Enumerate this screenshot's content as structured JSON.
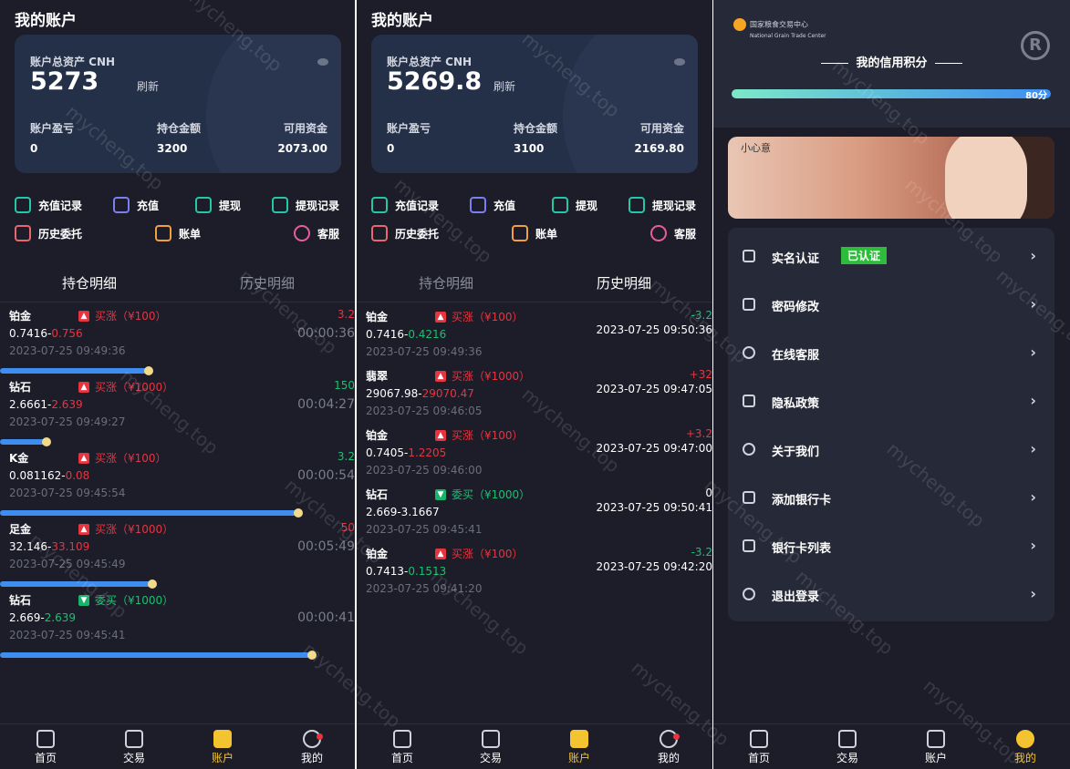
{
  "screen1": {
    "title": "我的账户",
    "total_label": "账户总资产 CNH",
    "total_value": "5273",
    "refresh": "刷新",
    "pnl_label": "账户盈亏",
    "pnl_value": "0",
    "hold_label": "持仓金额",
    "hold_value": "3200",
    "avail_label": "可用资金",
    "avail_value": "2073.00",
    "quick": [
      "充值记录",
      "充值",
      "提现",
      "提现记录",
      "历史委托",
      "账单",
      "客服"
    ],
    "tab_active": "持仓明细",
    "tab_other": "历史明细",
    "rows": [
      {
        "name": "铂金",
        "dir": "买涨（¥100）",
        "price_a": "0.7416-",
        "price_b": "0.756",
        "time": "2023-07-25 09:49:36",
        "right": "3.2",
        "countdown": "00:00:36",
        "progress": 0.42
      },
      {
        "name": "钻石",
        "dir": "买涨（¥1000）",
        "price_a": "2.6661-",
        "price_b": "2.639",
        "time": "2023-07-25 09:49:27",
        "right": "150",
        "countdown": "00:04:27",
        "progress": 0.13
      },
      {
        "name": "K金",
        "dir": "买涨（¥100）",
        "price_a": "0.081162-",
        "price_b": "0.08",
        "time": "2023-07-25 09:45:54",
        "right": "3.2",
        "countdown": "00:00:54",
        "progress": 0.84
      },
      {
        "name": "足金",
        "dir": "买涨（¥1000）",
        "price_a": "32.146-",
        "price_b": "33.109",
        "time": "2023-07-25 09:45:49",
        "right": "50",
        "countdown": "00:05:49",
        "progress": 0.43
      },
      {
        "name": "钻石",
        "dir": "委买（¥1000）",
        "price_a": "2.669-",
        "price_b": "2.639",
        "time": "2023-07-25 09:45:41",
        "right": "",
        "countdown": "00:00:41",
        "progress": 0.88
      }
    ]
  },
  "screen2": {
    "title": "我的账户",
    "total_label": "账户总资产 CNH",
    "total_value": "5269.8",
    "refresh": "刷新",
    "pnl_label": "账户盈亏",
    "pnl_value": "0",
    "hold_label": "持仓金额",
    "hold_value": "3100",
    "avail_label": "可用资金",
    "avail_value": "2169.80",
    "quick": [
      "充值记录",
      "充值",
      "提现",
      "提现记录",
      "历史委托",
      "账单",
      "客服"
    ],
    "tab_other": "持仓明细",
    "tab_active": "历史明细",
    "rows": [
      {
        "name": "铂金",
        "dir": "买涨（¥100）",
        "price_a": "0.7416-",
        "price_b": "0.4216",
        "time": "2023-07-25 09:49:36",
        "right": "-3.2",
        "rtime": "2023-07-25 09:50:36"
      },
      {
        "name": "翡翠",
        "dir": "买涨（¥1000）",
        "price_a": "29067.98-",
        "price_b": "29070.47",
        "time": "2023-07-25 09:46:05",
        "right": "+32",
        "rtime": "2023-07-25 09:47:05"
      },
      {
        "name": "铂金",
        "dir": "买涨（¥100）",
        "price_a": "0.7405-",
        "price_b": "1.2205",
        "time": "2023-07-25 09:46:00",
        "right": "+3.2",
        "rtime": "2023-07-25 09:47:00"
      },
      {
        "name": "钻石",
        "dir": "委买（¥1000）",
        "price_a": "2.669-3.1667",
        "price_b": "",
        "time": "2023-07-25 09:45:41",
        "right": "0",
        "rtime": "2023-07-25 09:50:41"
      },
      {
        "name": "铂金",
        "dir": "买涨（¥100）",
        "price_a": "0.7413-",
        "price_b": "0.1513",
        "time": "2023-07-25 09:41:20",
        "right": "-3.2",
        "rtime": "2023-07-25 09:42:20"
      }
    ]
  },
  "screen3": {
    "logo_cn": "国家粮食交易中心",
    "logo_en": "National Grain Trade Center",
    "credit_title": "我的信用积分",
    "credit_value": "80分",
    "credit_level": 0.8,
    "banner_text": "小心意",
    "menu": [
      "实名认证",
      "密码修改",
      "在线客服",
      "隐私政策",
      "关于我们",
      "添加银行卡",
      "银行卡列表",
      "退出登录"
    ],
    "verified": "已认证"
  },
  "nav": [
    "首页",
    "交易",
    "账户",
    "我的"
  ],
  "watermark": "mycheng.top"
}
